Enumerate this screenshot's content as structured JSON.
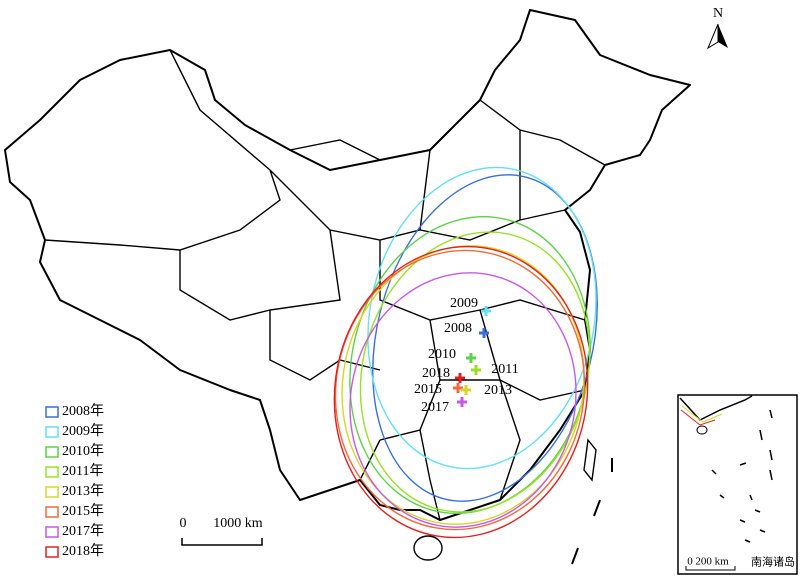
{
  "north": "N",
  "legend": [
    {
      "label": "2008年",
      "color": "#3a6fd8"
    },
    {
      "label": "2009年",
      "color": "#66e0ee"
    },
    {
      "label": "2010年",
      "color": "#5fd04a"
    },
    {
      "label": "2011年",
      "color": "#9ae02a"
    },
    {
      "label": "2013年",
      "color": "#d6d62a"
    },
    {
      "label": "2015年",
      "color": "#f06a3a"
    },
    {
      "label": "2017年",
      "color": "#c65ae6"
    },
    {
      "label": "2018年",
      "color": "#e02020"
    }
  ],
  "centroid_labels": [
    "2009",
    "2008",
    "2010",
    "2011",
    "2018",
    "2015",
    "2013",
    "2017"
  ],
  "scale_bar": {
    "zero": "0",
    "length": "1000 km"
  },
  "inset": {
    "title": "南海诸岛",
    "scale_zero": "0",
    "scale_length": "200 km"
  }
}
